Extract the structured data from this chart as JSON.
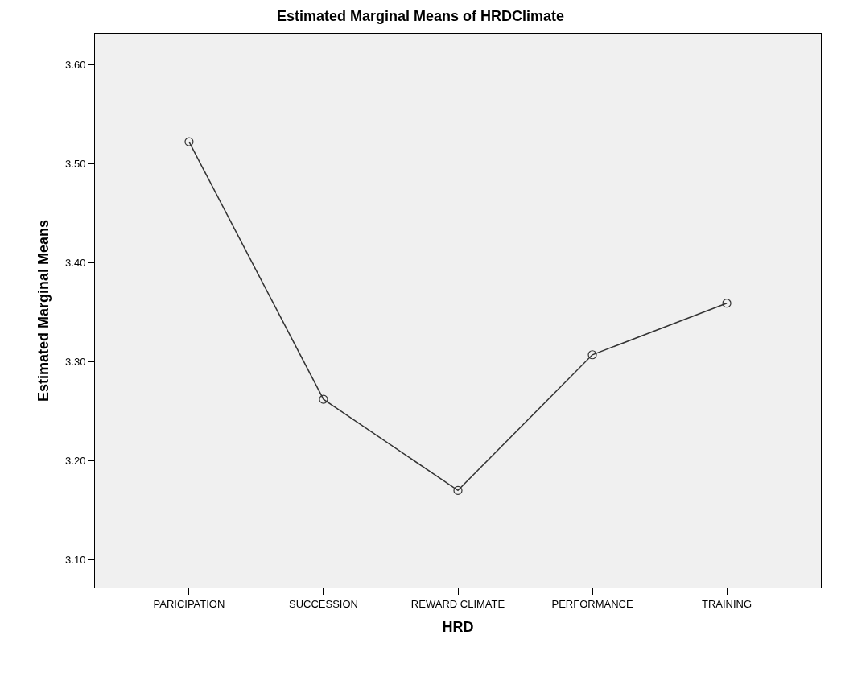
{
  "chart_data": {
    "type": "line",
    "title": "Estimated Marginal Means of HRDClimate",
    "xlabel": "HRD",
    "ylabel": "Estimated Marginal Means",
    "categories": [
      "PARICIPATION",
      "SUCCESSION",
      "REWARD CLIMATE",
      "PERFORMANCE",
      "TRAINING"
    ],
    "series": [
      {
        "color": "#333333",
        "values": [
          3.522,
          3.262,
          3.17,
          3.307,
          3.359
        ]
      }
    ],
    "ylim": [
      3.072,
      3.631
    ],
    "yticks": [
      {
        "value": 3.1,
        "label": "3.10"
      },
      {
        "value": 3.2,
        "label": "3.20"
      },
      {
        "value": 3.3,
        "label": "3.30"
      },
      {
        "value": 3.4,
        "label": "3.40"
      },
      {
        "value": 3.5,
        "label": "3.50"
      },
      {
        "value": 3.6,
        "label": "3.60"
      }
    ],
    "marker": "circle",
    "line_style": "solid",
    "grid": false
  }
}
